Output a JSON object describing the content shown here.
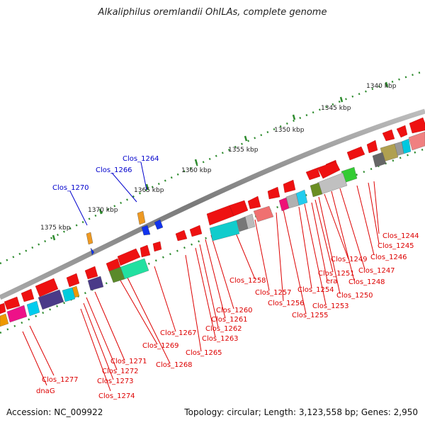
{
  "title": "Alkaliphilus oremlandii OhILAs, complete genome",
  "footer": {
    "accession": "Accession: NC_009922",
    "topology": "Topology: circular; Length: 3,123,558 bp; Genes: 2,950"
  },
  "colors": {
    "backbone": "#8c8c8c",
    "tick_line": "#2e8b2e",
    "forward_gene": "#ee1111",
    "red_label": "#dd0000",
    "blue_label": "#0000cc"
  },
  "ruler": [
    "1340 kbp",
    "1345 kbp",
    "1350 kbp",
    "1355 kbp",
    "1360 kbp",
    "1365 kbp",
    "1370 kbp",
    "1375 kbp"
  ],
  "blue_labels": [
    "Clos_1264",
    "Clos_1266",
    "Clos_1270"
  ],
  "red_labels": [
    "Clos_1244",
    "Clos_1245",
    "Clos_1246",
    "Clos_1247",
    "Clos_1248",
    "Clos_1249",
    "Clos_1250",
    "Clos_1251",
    "era",
    "Clos_1253",
    "Clos_1254",
    "Clos_1255",
    "Clos_1256",
    "Clos_1257",
    "Clos_1258",
    "Clos_1260",
    "Clos_1261",
    "Clos_1262",
    "Clos_1263",
    "Clos_1265",
    "Clos_1267",
    "Clos_1268",
    "Clos_1269",
    "Clos_1271",
    "Clos_1272",
    "Clos_1273",
    "Clos_1274",
    "Clos_1277",
    "dnaG"
  ]
}
